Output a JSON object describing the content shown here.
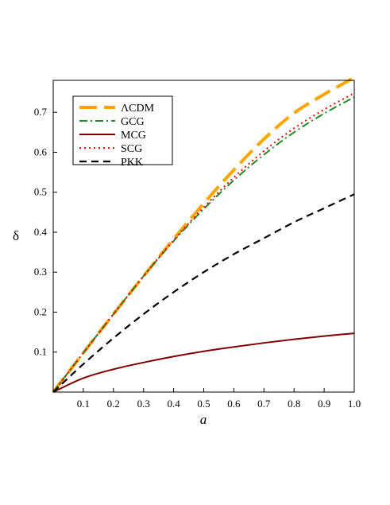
{
  "chart_data": {
    "type": "line",
    "title": "",
    "xlabel": "a",
    "ylabel": "δ",
    "xlim": [
      0,
      1.0
    ],
    "ylim": [
      0,
      0.78
    ],
    "xticks": [
      0.1,
      0.2,
      0.3,
      0.4,
      0.5,
      0.6,
      0.7,
      0.8,
      0.9,
      1.0
    ],
    "xtick_labels": [
      "0.1",
      "0.2",
      "0.3",
      "0.4",
      "0.5",
      "0.6",
      "0.7",
      "0.8",
      "0.9",
      "1.0"
    ],
    "yticks": [
      0.1,
      0.2,
      0.3,
      0.4,
      0.5,
      0.6,
      0.7
    ],
    "ytick_labels": [
      "0.1",
      "0.2",
      "0.3",
      "0.4",
      "0.5",
      "0.6",
      "0.7"
    ],
    "grid": false,
    "legend_position": "top-left",
    "series": [
      {
        "name": "ΛCDM",
        "color": "#FFA500",
        "style": "long-dash",
        "x": [
          0,
          0.1,
          0.2,
          0.3,
          0.4,
          0.5,
          0.6,
          0.7,
          0.8,
          0.9,
          1.0
        ],
        "y": [
          0,
          0.098,
          0.195,
          0.29,
          0.383,
          0.472,
          0.556,
          0.633,
          0.698,
          0.745,
          0.787
        ]
      },
      {
        "name": "GCG",
        "color": "#228B22",
        "style": "dash-dot",
        "x": [
          0,
          0.1,
          0.2,
          0.3,
          0.4,
          0.5,
          0.6,
          0.7,
          0.8,
          0.9,
          1.0
        ],
        "y": [
          0,
          0.098,
          0.195,
          0.29,
          0.378,
          0.458,
          0.53,
          0.594,
          0.65,
          0.697,
          0.738
        ]
      },
      {
        "name": "MCG",
        "color": "#800000",
        "style": "solid",
        "x": [
          0,
          0.1,
          0.2,
          0.3,
          0.4,
          0.5,
          0.6,
          0.7,
          0.8,
          0.9,
          1.0
        ],
        "y": [
          0,
          0.035,
          0.057,
          0.074,
          0.089,
          0.102,
          0.113,
          0.123,
          0.132,
          0.14,
          0.147
        ]
      },
      {
        "name": "SCG",
        "color": "#FF0000",
        "style": "dotted",
        "x": [
          0,
          0.1,
          0.2,
          0.3,
          0.4,
          0.5,
          0.6,
          0.7,
          0.8,
          0.9,
          1.0
        ],
        "y": [
          0,
          0.098,
          0.195,
          0.29,
          0.38,
          0.462,
          0.537,
          0.603,
          0.66,
          0.707,
          0.748
        ]
      },
      {
        "name": "PKK",
        "color": "#000000",
        "style": "dashed",
        "x": [
          0,
          0.1,
          0.2,
          0.3,
          0.4,
          0.5,
          0.6,
          0.7,
          0.8,
          0.9,
          1.0
        ],
        "y": [
          0,
          0.07,
          0.135,
          0.195,
          0.25,
          0.3,
          0.345,
          0.385,
          0.425,
          0.46,
          0.495
        ]
      }
    ]
  }
}
